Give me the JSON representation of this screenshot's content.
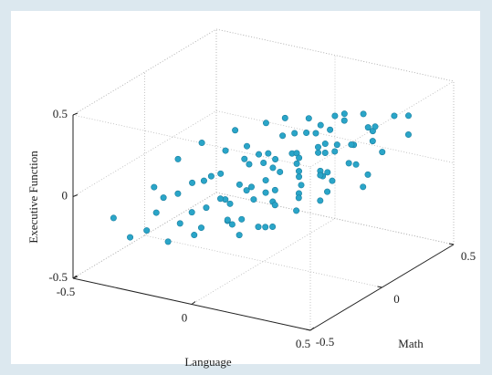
{
  "chart_data": {
    "type": "scatter3d",
    "xlabel": "Language",
    "ylabel": "Math",
    "zlabel": "Executive Function",
    "x": [
      -0.45,
      -0.4,
      -0.38,
      -0.35,
      -0.33,
      -0.3,
      -0.3,
      -0.28,
      -0.25,
      -0.25,
      -0.22,
      -0.2,
      -0.2,
      -0.18,
      -0.17,
      -0.15,
      -0.15,
      -0.14,
      -0.12,
      -0.12,
      -0.1,
      -0.1,
      -0.09,
      -0.08,
      -0.07,
      -0.06,
      -0.05,
      -0.05,
      -0.04,
      -0.03,
      -0.02,
      -0.01,
      0,
      0,
      0.01,
      0.02,
      0.02,
      0.03,
      0.04,
      0.05,
      0.05,
      0.06,
      0.07,
      0.08,
      0.08,
      0.09,
      0.1,
      0.1,
      0.11,
      0.12,
      0.12,
      0.13,
      0.14,
      0.15,
      0.15,
      0.16,
      0.17,
      0.18,
      0.18,
      0.19,
      0.2,
      0.2,
      0.21,
      0.22,
      0.23,
      0.24,
      0.25,
      0.25,
      0.26,
      0.27,
      0.28,
      0.3,
      0.3,
      0.31,
      0.32,
      0.33,
      0.35,
      0.36,
      0.38,
      0.4,
      -0.36,
      -0.27,
      -0.19,
      -0.11,
      -0.03,
      0.04,
      0.11,
      0.19,
      0.27,
      0.34,
      -0.42,
      -0.16,
      0.07,
      0.22,
      0.37,
      0.42,
      -0.08,
      0.14,
      0.29,
      0.01
    ],
    "y": [
      -0.3,
      -0.1,
      0.2,
      -0.35,
      0.05,
      -0.2,
      0.3,
      0.1,
      -0.4,
      0.15,
      -0.05,
      0.35,
      -0.25,
      0,
      0.25,
      -0.15,
      0.4,
      0.1,
      -0.3,
      0.2,
      -0.1,
      0.3,
      0.05,
      -0.35,
      0.15,
      -0.2,
      0.4,
      0,
      -0.1,
      0.25,
      -0.4,
      0.1,
      0.3,
      -0.25,
      0.05,
      0.2,
      -0.15,
      0.35,
      -0.05,
      0.15,
      -0.3,
      0.4,
      0,
      0.25,
      -0.2,
      0.1,
      0.3,
      -0.1,
      0.2,
      -0.35,
      0.05,
      0.35,
      -0.15,
      0.25,
      0,
      -0.3,
      0.15,
      0.4,
      -0.05,
      0.2,
      -0.25,
      0.3,
      0.1,
      -0.1,
      0.35,
      0,
      -0.4,
      0.2,
      0.05,
      -0.2,
      0.3,
      -0.1,
      0.15,
      0.4,
      -0.3,
      0.05,
      0.25,
      -0.15,
      0.1,
      0.35,
      0,
      -0.3,
      0.2,
      0.4,
      -0.2,
      0.3,
      -0.35,
      0.1,
      -0.05,
      0.2,
      0.1,
      -0.4,
      0.45,
      -0.3,
      0.4,
      0,
      -0.1,
      0.2,
      0.3,
      0
    ],
    "z": [
      -0.22,
      -0.12,
      0,
      -0.28,
      -0.15,
      -0.1,
      0.05,
      -0.12,
      -0.18,
      0.02,
      -0.05,
      0.1,
      -0.2,
      -0.02,
      -0.03,
      -0.14,
      0.12,
      0.03,
      -0.08,
      -0.04,
      -0.1,
      0.08,
      0.04,
      -0.18,
      0.06,
      -0.03,
      0.15,
      -0.06,
      0.01,
      0.02,
      -0.09,
      0.07,
      0.13,
      -0.12,
      0.05,
      0,
      0.02,
      0.16,
      -0.04,
      0.1,
      -0.1,
      0.2,
      0.07,
      0.06,
      0.01,
      0.11,
      0.18,
      -0.05,
      0.13,
      -0.02,
      0.03,
      0.22,
      0.06,
      0.09,
      0.1,
      -0.08,
      0.14,
      0.25,
      0,
      0.17,
      0.04,
      0.12,
      0.06,
      0.09,
      0.21,
      0.13,
      0,
      0.19,
      0.05,
      0.08,
      0.23,
      0.02,
      0.11,
      0.28,
      0.07,
      0.18,
      0.15,
      0.12,
      0.1,
      0.22,
      -0.2,
      -0.13,
      0.04,
      0.04,
      -0.15,
      0.14,
      -0.12,
      0.03,
      0.14,
      0.24,
      -0.06,
      -0.22,
      0.19,
      -0.06,
      0.3,
      0.09,
      -0.12,
      0.16,
      0.26,
      0
    ],
    "color": "#2aa5c8",
    "xlim": [
      -0.5,
      0.5
    ],
    "ylim": [
      -0.5,
      0.5
    ],
    "zlim": [
      -0.5,
      0.5
    ],
    "xticks": [
      -0.5,
      0,
      0.5
    ],
    "yticks": [
      -0.5,
      0,
      0.5
    ],
    "zticks": [
      -0.5,
      0,
      0.5
    ],
    "grid": true
  }
}
